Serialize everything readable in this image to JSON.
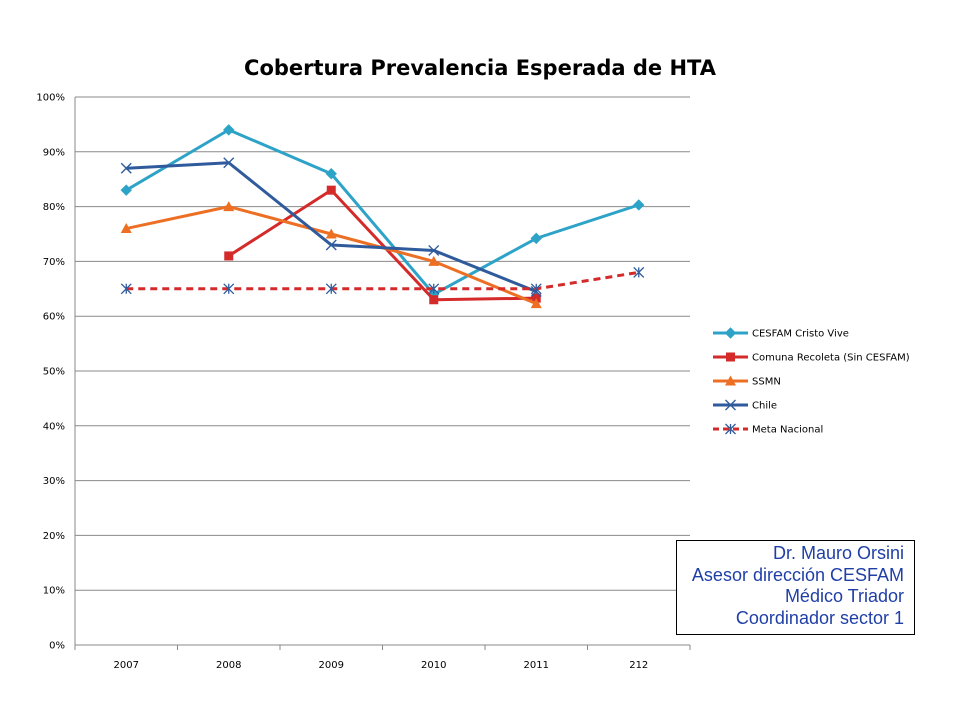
{
  "chart_data": {
    "type": "line",
    "title": "Cobertura Prevalencia Esperada de HTA",
    "xlabel": "",
    "ylabel": "",
    "categories": [
      "2007",
      "2008",
      "2009",
      "2010",
      "2011",
      "212"
    ],
    "ylim": [
      0,
      1
    ],
    "yticks": [
      "0%",
      "10%",
      "20%",
      "30%",
      "40%",
      "50%",
      "60%",
      "70%",
      "80%",
      "90%",
      "100%"
    ],
    "grid": true,
    "legend_position": "right",
    "series": [
      {
        "name": "CESFAM Cristo Vive",
        "color": "#2ea3c8",
        "marker": "diamond",
        "dash": false,
        "values": [
          0.83,
          0.94,
          0.86,
          0.64,
          0.742,
          0.803
        ]
      },
      {
        "name": "Comuna Recoleta (Sin CESFAM)",
        "color": "#d42a2a",
        "marker": "square",
        "dash": false,
        "values": [
          null,
          0.71,
          0.83,
          0.63,
          0.633,
          null
        ]
      },
      {
        "name": "SSMN",
        "color": "#ec6f23",
        "marker": "triangle",
        "dash": false,
        "values": [
          0.76,
          0.8,
          0.75,
          0.7,
          0.623,
          null
        ]
      },
      {
        "name": "Chile",
        "color": "#2f5b9c",
        "marker": "x",
        "dash": false,
        "values": [
          0.87,
          0.88,
          0.73,
          0.72,
          0.645,
          null
        ]
      },
      {
        "name": "Meta Nacional",
        "color": "#d42a2a",
        "marker": "star",
        "dash": true,
        "values": [
          0.65,
          0.65,
          0.65,
          0.65,
          0.65,
          0.68
        ]
      }
    ]
  },
  "signature": {
    "lines": [
      "Dr. Mauro Orsini",
      "Asesor dirección CESFAM",
      "Médico Triador ",
      "Coordinador sector 1"
    ]
  }
}
